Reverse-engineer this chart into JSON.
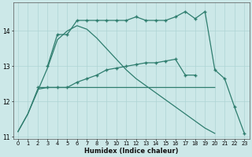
{
  "xlabel": "Humidex (Indice chaleur)",
  "x_all": [
    0,
    1,
    2,
    3,
    4,
    5,
    6,
    7,
    8,
    9,
    10,
    11,
    12,
    13,
    14,
    15,
    16,
    17,
    18,
    19,
    20,
    21,
    22,
    23
  ],
  "line1_x": [
    0,
    1,
    2,
    3,
    4,
    5,
    6,
    7,
    8,
    9,
    10,
    11,
    12,
    13,
    14,
    15,
    16,
    17,
    18,
    19,
    20
  ],
  "line1_y": [
    11.15,
    11.65,
    12.35,
    12.4,
    12.4,
    12.4,
    12.4,
    12.4,
    12.4,
    12.4,
    12.4,
    12.4,
    12.4,
    12.4,
    12.4,
    12.4,
    12.4,
    12.4,
    12.4,
    12.4,
    12.4
  ],
  "line2_x": [
    3,
    4,
    5,
    6,
    7,
    8,
    9,
    10,
    11,
    12,
    13,
    14,
    15,
    16,
    17,
    18,
    19,
    20,
    21,
    22,
    23
  ],
  "line2_y": [
    13.0,
    13.9,
    13.9,
    14.3,
    14.3,
    14.3,
    14.3,
    14.3,
    14.3,
    14.4,
    14.3,
    14.3,
    14.3,
    14.4,
    14.55,
    14.35,
    14.55,
    12.9,
    12.65,
    11.85,
    11.1
  ],
  "line3_x": [
    2,
    3,
    4,
    5,
    6,
    7,
    8,
    9,
    10,
    11,
    12,
    13,
    14,
    15,
    16,
    17,
    18
  ],
  "line3_y": [
    12.4,
    12.4,
    12.4,
    12.4,
    12.55,
    12.65,
    12.75,
    12.9,
    12.95,
    13.0,
    13.05,
    13.1,
    13.1,
    13.15,
    13.2,
    12.75,
    12.75
  ],
  "line4_x": [
    0,
    1,
    2,
    3,
    4,
    5,
    6,
    7,
    8,
    9,
    10,
    11,
    12,
    13,
    14,
    15,
    16,
    17,
    18,
    19,
    20,
    21,
    22,
    23
  ],
  "line4_y": [
    11.15,
    11.65,
    12.3,
    12.95,
    13.75,
    14.0,
    14.15,
    14.05,
    13.8,
    13.5,
    13.2,
    12.9,
    12.65,
    12.45,
    12.25,
    12.05,
    11.85,
    11.65,
    11.45,
    11.25,
    11.1,
    null,
    null,
    null
  ],
  "line_color": "#2e7d6e",
  "bg_color": "#cce8e8",
  "grid_color": "#afd4d4",
  "ylim": [
    10.95,
    14.8
  ],
  "yticks": [
    11,
    12,
    13,
    14
  ],
  "xlim": [
    -0.5,
    23.5
  ]
}
